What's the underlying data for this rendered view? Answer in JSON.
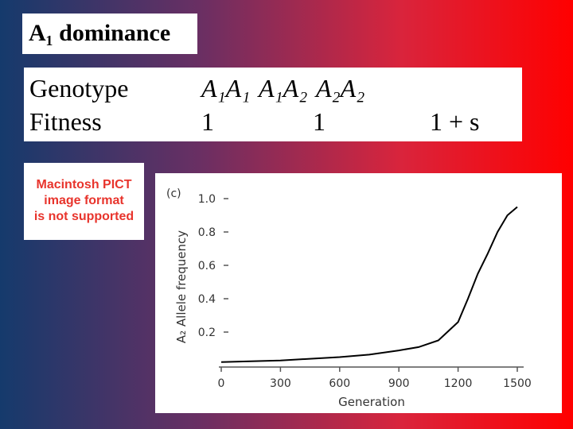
{
  "slide_title": "A₁ dominance",
  "table": {
    "rows": [
      [
        "Genotype",
        "A₁A₁",
        "A₁A₂",
        "A₂A₂"
      ],
      [
        "Fitness",
        "1",
        "1",
        "1 + s"
      ]
    ]
  },
  "placeholder": {
    "lines": [
      "Macintosh PICT",
      "image format",
      "is not supported"
    ]
  },
  "chart_data": {
    "type": "line",
    "panel_label": "(c)",
    "ylabel": "A₂ Allele frequency",
    "xlabel": "Generation",
    "x": [
      0,
      150,
      300,
      450,
      600,
      750,
      900,
      1000,
      1100,
      1200,
      1250,
      1300,
      1350,
      1400,
      1450,
      1500
    ],
    "series": [
      {
        "name": "A₂",
        "color": "#000000",
        "values": [
          0.02,
          0.025,
          0.03,
          0.04,
          0.05,
          0.065,
          0.09,
          0.11,
          0.15,
          0.26,
          0.4,
          0.55,
          0.67,
          0.8,
          0.9,
          0.95
        ]
      }
    ],
    "xlim": [
      0,
      1500
    ],
    "ylim": [
      0,
      1
    ],
    "xticks": [
      0,
      300,
      600,
      900,
      1200,
      1500
    ],
    "yticks": [
      {
        "value": 1,
        "label": "1.0"
      },
      0.8,
      0.6,
      0.4,
      0.2
    ]
  }
}
